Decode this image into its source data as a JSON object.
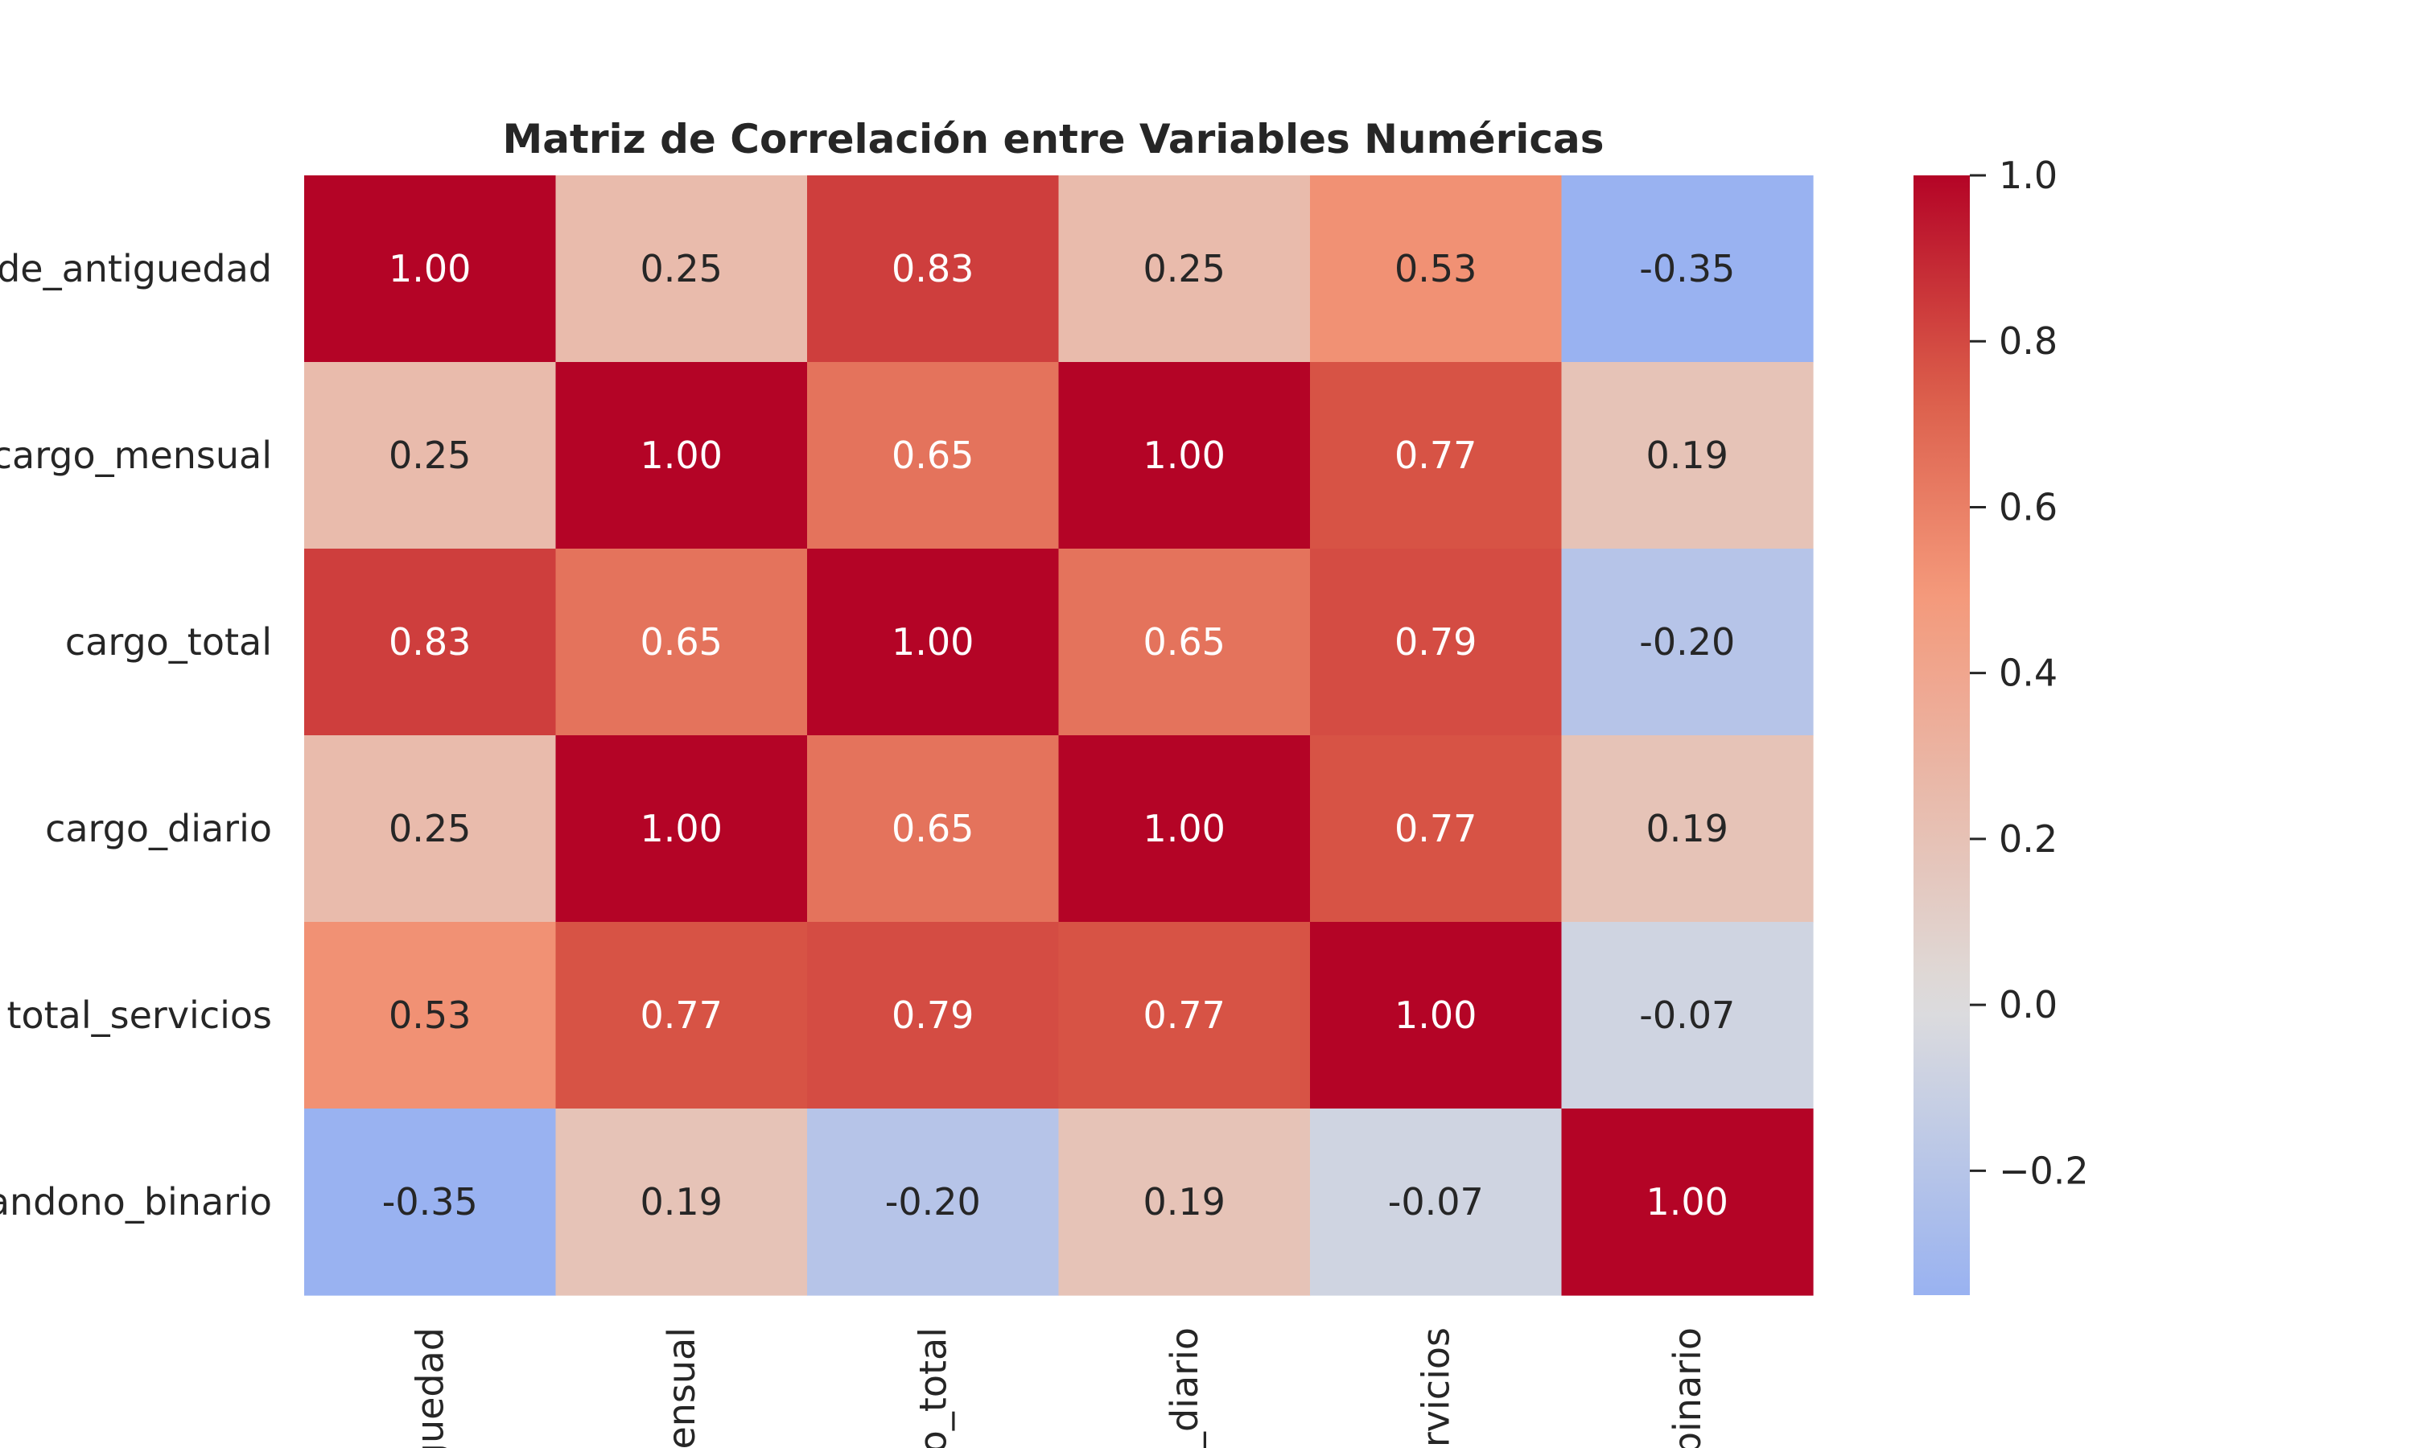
{
  "chart_data": {
    "type": "heatmap",
    "title": "Matriz de Correlación entre Variables Numéricas",
    "row_labels": [
      "de_antiguedad",
      "cargo_mensual",
      "cargo_total",
      "cargo_diario",
      "total_servicios",
      "andono_binario"
    ],
    "col_labels": [
      "guedad",
      "ensual",
      "o_total",
      "_diario",
      "ervicios",
      "binario"
    ],
    "values": [
      [
        1.0,
        0.25,
        0.83,
        0.25,
        0.53,
        -0.35
      ],
      [
        0.25,
        1.0,
        0.65,
        1.0,
        0.77,
        0.19
      ],
      [
        0.83,
        0.65,
        1.0,
        0.65,
        0.79,
        -0.2
      ],
      [
        0.25,
        1.0,
        0.65,
        1.0,
        0.77,
        0.19
      ],
      [
        0.53,
        0.77,
        0.79,
        0.77,
        1.0,
        -0.07
      ],
      [
        -0.35,
        0.19,
        -0.2,
        0.19,
        -0.07,
        1.0
      ]
    ],
    "cell_labels": [
      [
        "1.00",
        "0.25",
        "0.83",
        "0.25",
        "0.53",
        "-0.35"
      ],
      [
        "0.25",
        "1.00",
        "0.65",
        "1.00",
        "0.77",
        "0.19"
      ],
      [
        "0.83",
        "0.65",
        "1.00",
        "0.65",
        "0.79",
        "-0.20"
      ],
      [
        "0.25",
        "1.00",
        "0.65",
        "1.00",
        "0.77",
        "0.19"
      ],
      [
        "0.53",
        "0.77",
        "0.79",
        "0.77",
        "1.00",
        "-0.07"
      ],
      [
        "-0.35",
        "0.19",
        "-0.20",
        "0.19",
        "-0.07",
        "1.00"
      ]
    ],
    "colormap": "coolwarm",
    "colorbar": {
      "range": [
        -0.35,
        1.0
      ],
      "ticks": [
        1.0,
        0.8,
        0.6,
        0.4,
        0.2,
        0.0,
        -0.2
      ],
      "tick_labels": [
        "1.0",
        "0.8",
        "0.6",
        "0.4",
        "0.2",
        "0.0",
        "−0.2"
      ]
    }
  }
}
